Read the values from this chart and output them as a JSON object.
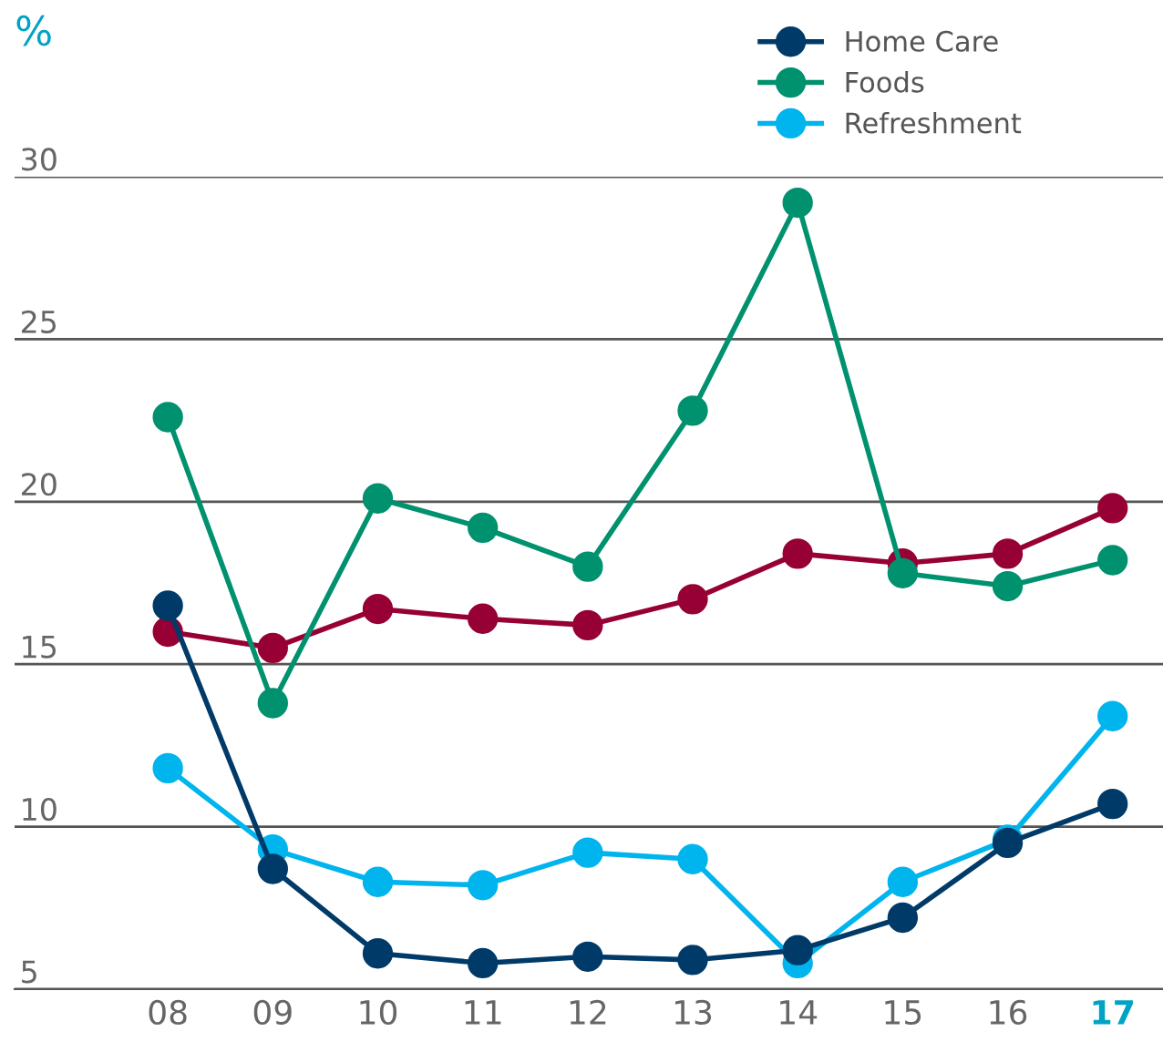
{
  "chart_data": {
    "type": "line",
    "ylabel": "%",
    "categories": [
      "08",
      "09",
      "10",
      "11",
      "12",
      "13",
      "14",
      "15",
      "16",
      "17"
    ],
    "series": [
      {
        "name": "Home Care",
        "color": "#003a68",
        "values": [
          16.8,
          8.7,
          6.1,
          5.8,
          6.0,
          5.9,
          6.2,
          7.2,
          9.5,
          10.7
        ]
      },
      {
        "name": "Foods",
        "color": "#00916e",
        "values": [
          22.6,
          13.8,
          20.1,
          19.2,
          18.0,
          22.8,
          29.2,
          17.8,
          17.4,
          18.2
        ]
      },
      {
        "name": "Refreshment",
        "color": "#00b4ee",
        "values": [
          11.8,
          9.3,
          8.3,
          8.2,
          9.2,
          9.0,
          5.8,
          8.3,
          9.6,
          13.4
        ]
      },
      {
        "color": "#970035",
        "values": [
          16.0,
          15.5,
          16.7,
          16.4,
          16.2,
          17.0,
          18.4,
          18.1,
          18.4,
          19.8
        ]
      }
    ],
    "ylim": [
      5,
      30
    ],
    "yticks": [
      5,
      10,
      15,
      20,
      25,
      30
    ],
    "grid": "y",
    "legend": "top right",
    "marker": "circle",
    "line_style": "solid"
  }
}
